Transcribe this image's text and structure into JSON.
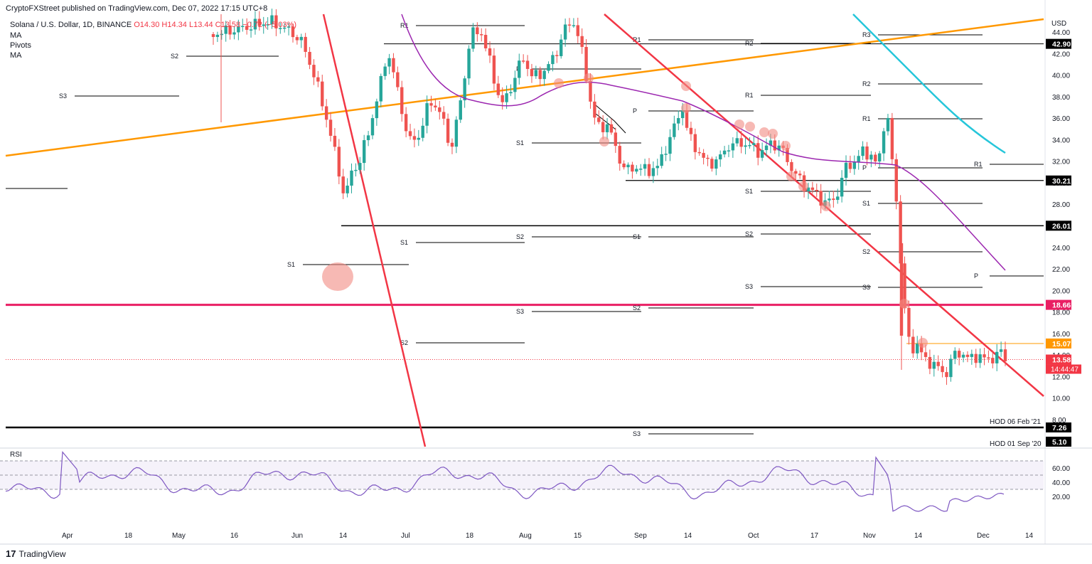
{
  "header": {
    "published": "CryptoFXStreet published on TradingView.com, Dec 07, 2022 17:15 UTC+8",
    "symbol": "Solana / U.S. Dollar, 1D, BINANCE",
    "open": "O14.30",
    "high": "H14.34",
    "low": "L13.44",
    "close": "C13.58",
    "change": "−0.72 (−5.03%)",
    "ind_ma": "MA",
    "ind_pivots": "Pivots",
    "ind_ma2": "MA"
  },
  "brand": {
    "logo": "17",
    "name": "TradingView"
  },
  "colors": {
    "up": "#26a69a",
    "down": "#ef5350",
    "orange": "#ff9800",
    "purple": "#9c27b0",
    "cyan": "#26c6da",
    "red": "#f23645",
    "pink": "#e91e63",
    "black": "#000000"
  },
  "chart_data": {
    "type": "candlestick",
    "y_unit": "USD",
    "ylim": [
      6.5,
      45.5
    ],
    "yticks": [
      "44.00",
      "42.00",
      "40.00",
      "38.00",
      "36.00",
      "34.00",
      "32.00",
      "30.00",
      "28.00",
      "26.00",
      "24.00",
      "22.00",
      "20.00",
      "18.00",
      "16.00",
      "14.00",
      "12.00",
      "10.00",
      "8.00"
    ],
    "x_labels": [
      "Apr",
      "18",
      "May",
      "16",
      "Jun",
      "14",
      "Jul",
      "18",
      "Aug",
      "15",
      "Sep",
      "14",
      "Oct",
      "17",
      "Nov",
      "14",
      "Dec",
      "14"
    ],
    "price_badges": [
      {
        "label": "42.90",
        "value": 42.9,
        "color": "#000000"
      },
      {
        "label": "30.21",
        "value": 30.21,
        "color": "#000000"
      },
      {
        "label": "26.01",
        "value": 26.01,
        "color": "#000000"
      },
      {
        "label": "18.66",
        "value": 18.66,
        "color": "#e91e63"
      },
      {
        "label": "15.07",
        "value": 15.07,
        "color": "#ff9800"
      },
      {
        "label": "13.58",
        "value": 13.58,
        "color": "#f23645"
      },
      {
        "label": "7.26",
        "value": 7.26,
        "color": "#000000"
      },
      {
        "label": "5.10",
        "value": 5.1,
        "color": "#000000"
      }
    ],
    "countdown": "14:44:47",
    "hod_labels": [
      "HOD 06 Feb '21",
      "HOD 01 Sep '20"
    ],
    "pivot_labels": [
      "R1",
      "R2",
      "R3",
      "P",
      "S1",
      "S2",
      "S3"
    ],
    "horizontal_levels": [
      42.9,
      30.21,
      26.01,
      18.66,
      15.07,
      7.26
    ],
    "candles_close_sample": [
      {
        "date": "Jun 14",
        "close": 29.0
      },
      {
        "date": "Jul 18",
        "close": 38.0
      },
      {
        "date": "Aug 15",
        "close": 39.0
      },
      {
        "date": "Sep 14",
        "close": 37.0
      },
      {
        "date": "Oct 17",
        "close": 29.0
      },
      {
        "date": "Nov 05",
        "close": 36.0
      },
      {
        "date": "Nov 09",
        "close": 17.0
      },
      {
        "date": "Nov 21",
        "close": 12.0
      },
      {
        "date": "Dec 07",
        "close": 13.58
      }
    ],
    "rsi": {
      "label": "RSI",
      "ylim": [
        15,
        75
      ],
      "yticks": [
        "60.00",
        "40.00",
        "20.00"
      ],
      "bands": [
        70,
        50,
        30
      ]
    }
  }
}
